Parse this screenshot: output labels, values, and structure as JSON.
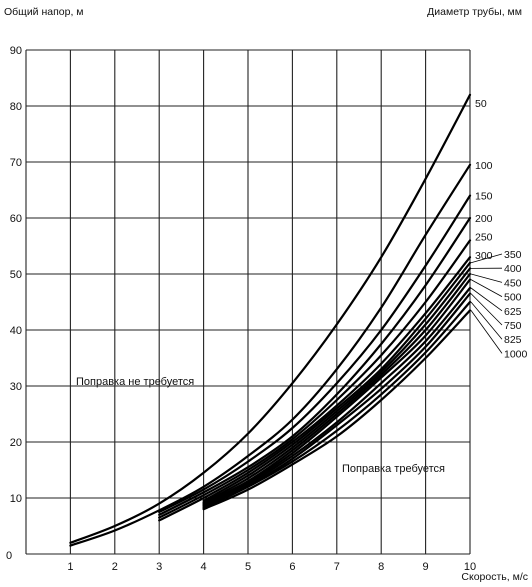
{
  "chart_data": {
    "type": "line",
    "ylabel": "Общий напор, м",
    "xlabel": "Скорость, м/с",
    "right_label": "Диаметр трубы, мм",
    "xlim": [
      0,
      10
    ],
    "ylim": [
      0,
      90
    ],
    "x_ticks": [
      "1",
      "2",
      "3",
      "4",
      "5",
      "6",
      "7",
      "8",
      "9",
      "10"
    ],
    "y_ticks": [
      "10",
      "20",
      "30",
      "40",
      "50",
      "60",
      "70",
      "80",
      "90"
    ],
    "origin_label": "0",
    "grid": true,
    "annotations": {
      "no_correction": "Поправка не требуется",
      "correction": "Поправка требуется"
    },
    "series": [
      {
        "name": "50",
        "x": [
          1,
          2,
          3,
          4,
          5,
          6,
          7,
          8,
          9,
          10
        ],
        "y": [
          2.0,
          5.0,
          9.0,
          14.5,
          21.5,
          30.5,
          41.0,
          53.0,
          67.0,
          82.0
        ]
      },
      {
        "name": "100",
        "x": [
          1,
          2,
          3,
          4,
          5,
          6,
          7,
          8,
          9,
          10
        ],
        "y": [
          1.5,
          4.2,
          7.8,
          12.0,
          17.5,
          24.0,
          33.0,
          44.0,
          57.0,
          69.5
        ]
      },
      {
        "name": "150",
        "x": [
          3,
          4,
          5,
          6,
          7,
          8,
          9,
          10
        ],
        "y": [
          7.5,
          11.5,
          16.5,
          22.5,
          30.5,
          40.0,
          51.5,
          64.0
        ]
      },
      {
        "name": "200",
        "x": [
          3,
          4,
          5,
          6,
          7,
          8,
          9,
          10
        ],
        "y": [
          7.0,
          11.0,
          15.5,
          21.0,
          28.5,
          37.5,
          48.0,
          60.0
        ]
      },
      {
        "name": "250",
        "x": [
          3,
          4,
          5,
          6,
          7,
          8,
          9,
          10
        ],
        "y": [
          6.5,
          10.5,
          15.0,
          20.5,
          27.5,
          35.5,
          45.0,
          56.0
        ]
      },
      {
        "name": "300",
        "x": [
          3,
          4,
          5,
          6,
          7,
          8,
          9,
          10
        ],
        "y": [
          6.0,
          10.0,
          14.5,
          20.0,
          26.5,
          34.0,
          43.0,
          53.0
        ]
      },
      {
        "name": "350",
        "x": [
          4,
          5,
          6,
          7,
          8,
          9,
          10
        ],
        "y": [
          9.5,
          14.0,
          19.5,
          26.0,
          33.0,
          42.0,
          52.0
        ]
      },
      {
        "name": "400",
        "x": [
          4,
          5,
          6,
          7,
          8,
          9,
          10
        ],
        "y": [
          9.2,
          13.5,
          19.0,
          25.5,
          32.5,
          41.0,
          51.0
        ]
      },
      {
        "name": "450",
        "x": [
          4,
          5,
          6,
          7,
          8,
          9,
          10
        ],
        "y": [
          9.0,
          13.0,
          18.5,
          25.0,
          32.0,
          40.0,
          50.0
        ]
      },
      {
        "name": "500",
        "x": [
          4,
          5,
          6,
          7,
          8,
          9,
          10
        ],
        "y": [
          8.8,
          12.8,
          18.0,
          24.5,
          31.5,
          39.0,
          49.0
        ]
      },
      {
        "name": "625",
        "x": [
          4,
          5,
          6,
          7,
          8,
          9,
          10
        ],
        "y": [
          8.6,
          12.5,
          17.5,
          23.5,
          30.5,
          38.0,
          47.5
        ]
      },
      {
        "name": "750",
        "x": [
          4,
          5,
          6,
          7,
          8,
          9,
          10
        ],
        "y": [
          8.4,
          12.2,
          17.0,
          23.0,
          29.5,
          37.0,
          46.5
        ]
      },
      {
        "name": "825",
        "x": [
          4,
          5,
          6,
          7,
          8,
          9,
          10
        ],
        "y": [
          8.2,
          12.0,
          16.5,
          22.0,
          28.5,
          36.0,
          45.0
        ]
      },
      {
        "name": "1000",
        "x": [
          4,
          5,
          6,
          7,
          8,
          9,
          10
        ],
        "y": [
          8.0,
          11.5,
          16.0,
          21.0,
          27.5,
          35.0,
          43.5
        ]
      }
    ]
  }
}
